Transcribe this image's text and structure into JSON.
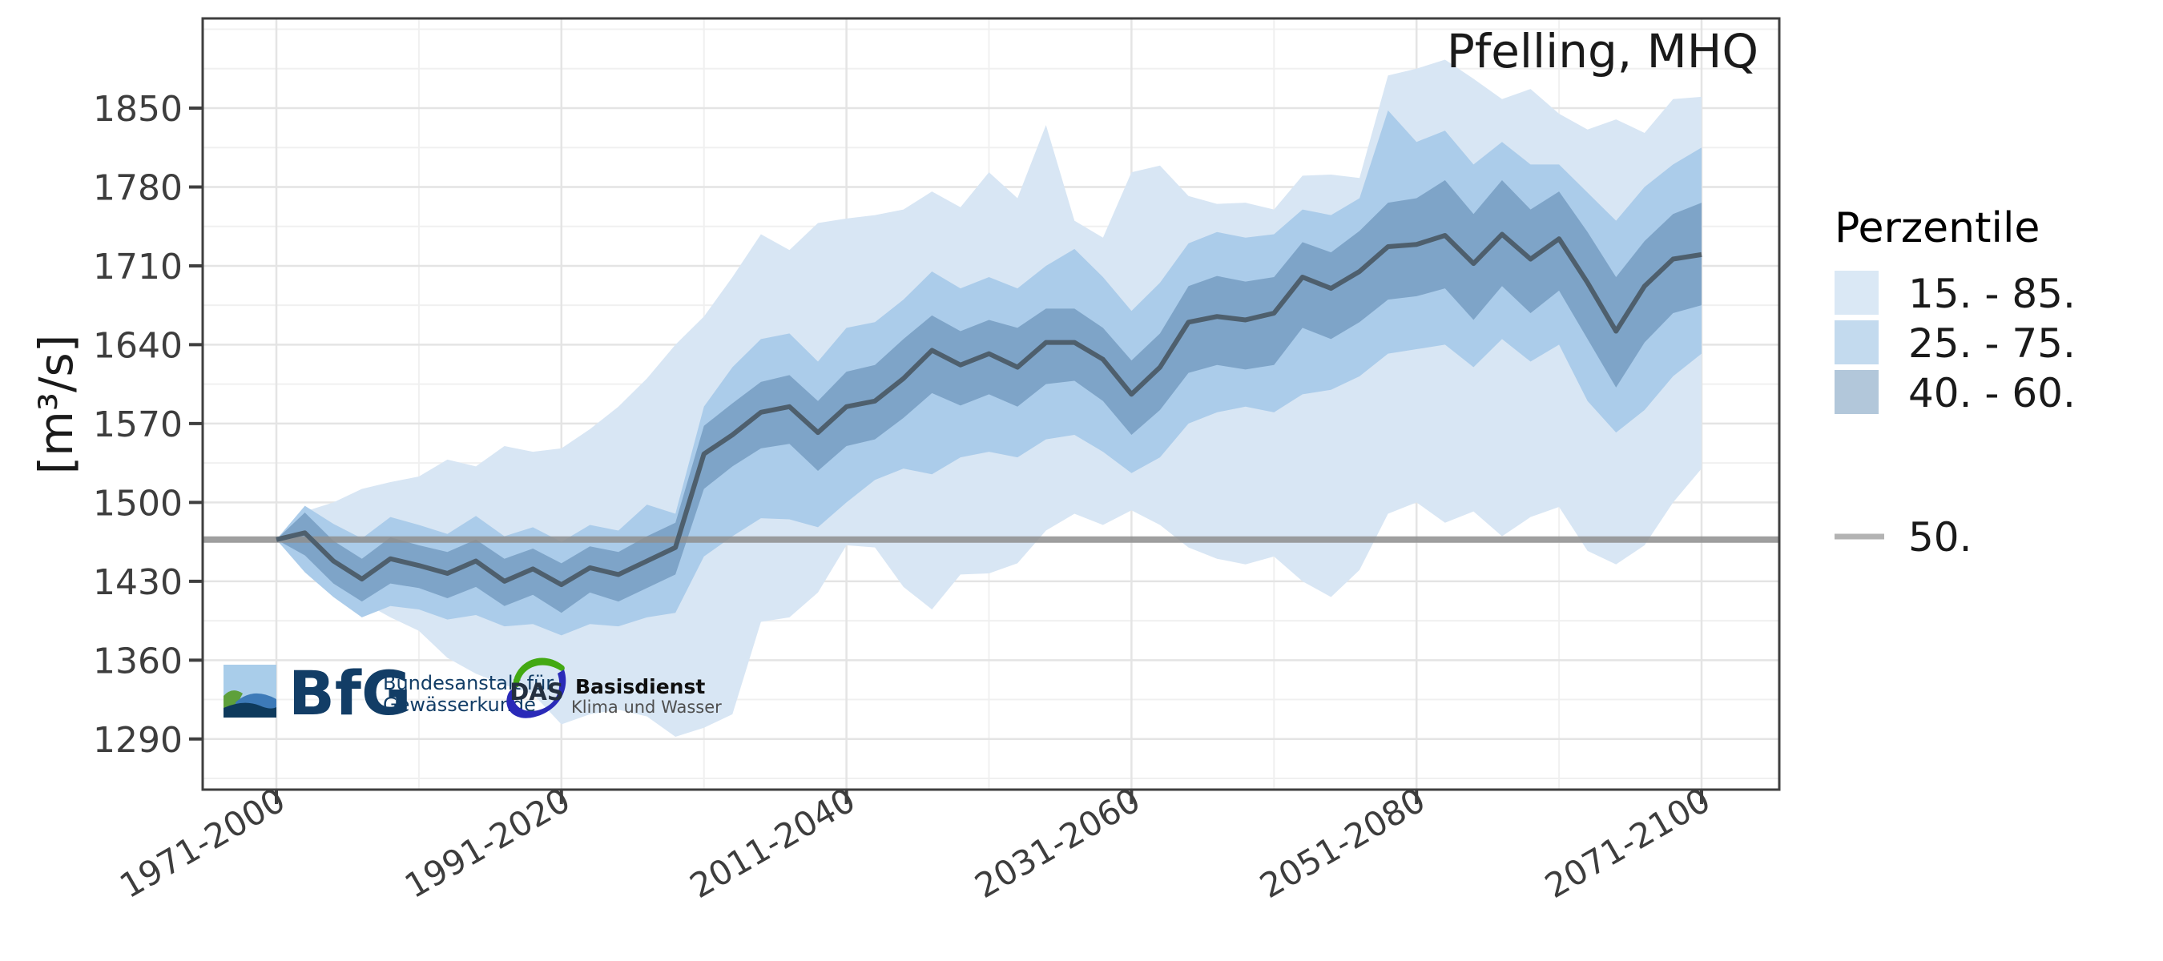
{
  "title": "Pfelling, MHQ",
  "y_axis": {
    "title": "[m³/s]"
  },
  "legend": {
    "title": "Perzentile",
    "bands": [
      {
        "label": "15. - 85.",
        "color": "#dae8f5"
      },
      {
        "label": "25. - 75.",
        "color": "#c3daee"
      },
      {
        "label": "40. - 60.",
        "color": "#b2c7da"
      }
    ],
    "line": {
      "label": "50.",
      "color": "#b3b3b3"
    }
  },
  "reference_line": {
    "value": 1467,
    "color": "#8f8f8f",
    "meaning": "50. Perzentil Referenz"
  },
  "logos": {
    "bfg": {
      "abbr": "BfG",
      "name_line1": "Bundesanstalt für",
      "name_line2": "Gewässerkunde",
      "colors": {
        "navy": "#123d66",
        "sky": "#a9cdea",
        "green": "#5ea03b",
        "blue": "#3d7ab8",
        "dark": "#0e3a5c"
      }
    },
    "das": {
      "abbr": "DAS",
      "name_line1": "Basisdienst",
      "name_line2": "Klima und Wasser",
      "colors": {
        "green": "#43a913",
        "blue": "#2a2ab8",
        "text": "#243040",
        "subtext": "#4f4f4f"
      }
    }
  },
  "colors": {
    "band_15_85": "#d8e6f4",
    "band_25_75": "#abccea",
    "band_40_60": "#7ea4c8",
    "median_line": "#4e5f6d",
    "grid_major": "#e4e4e4",
    "grid_minor": "#f0f0f0",
    "panel_border": "#3f3f3f",
    "tick_text": "#3d3d3d",
    "title_text": "#1a1a1a"
  },
  "chart_data": {
    "type": "area",
    "title": "Pfelling, MHQ",
    "xlabel": "",
    "ylabel": "[m³/s]",
    "legend_position": "right",
    "grid": "on",
    "ylim": [
      1244,
      1930
    ],
    "y_ticks": [
      1290,
      1360,
      1430,
      1500,
      1570,
      1640,
      1710,
      1780,
      1850
    ],
    "y_minor_ticks": [
      1255,
      1325,
      1395,
      1465,
      1535,
      1605,
      1675,
      1745,
      1815,
      1885,
      1920
    ],
    "x_tick_labels": [
      "1971-2000",
      "1991-2020",
      "2011-2040",
      "2031-2060",
      "2051-2080",
      "2071-2100"
    ],
    "x_tick_years": [
      1971,
      1991,
      2011,
      2031,
      2051,
      2071
    ],
    "x_minor_years": [
      1981,
      2001,
      2021,
      2041,
      2061
    ],
    "reference_value": 1467,
    "x": [
      1971,
      1973,
      1975,
      1977,
      1979,
      1981,
      1983,
      1985,
      1987,
      1989,
      1991,
      1993,
      1995,
      1997,
      1999,
      2001,
      2003,
      2005,
      2007,
      2009,
      2011,
      2013,
      2015,
      2017,
      2019,
      2021,
      2023,
      2025,
      2027,
      2029,
      2031,
      2033,
      2035,
      2037,
      2039,
      2041,
      2043,
      2045,
      2047,
      2049,
      2051,
      2053,
      2055,
      2057,
      2059,
      2061,
      2063,
      2065,
      2067,
      2069,
      2071
    ],
    "series": [
      {
        "name": "p15",
        "values": [
          1467,
          1446,
          1430,
          1412,
          1398,
          1386,
          1362,
          1348,
          1338,
          1330,
          1303,
          1312,
          1316,
          1310,
          1292,
          1300,
          1312,
          1394,
          1398,
          1420,
          1462,
          1460,
          1425,
          1405,
          1436,
          1437,
          1446,
          1475,
          1490,
          1480,
          1493,
          1480,
          1460,
          1450,
          1445,
          1452,
          1430,
          1416,
          1440,
          1490,
          1500,
          1482,
          1492,
          1470,
          1487,
          1496,
          1457,
          1445,
          1462,
          1500,
          1530
        ]
      },
      {
        "name": "p25",
        "values": [
          1467,
          1438,
          1416,
          1398,
          1408,
          1405,
          1396,
          1400,
          1390,
          1392,
          1382,
          1392,
          1390,
          1398,
          1402,
          1452,
          1470,
          1486,
          1485,
          1478,
          1500,
          1520,
          1530,
          1525,
          1540,
          1545,
          1540,
          1556,
          1560,
          1545,
          1526,
          1540,
          1570,
          1580,
          1585,
          1580,
          1596,
          1600,
          1612,
          1632,
          1636,
          1640,
          1620,
          1645,
          1625,
          1640,
          1590,
          1562,
          1582,
          1612,
          1632
        ]
      },
      {
        "name": "p40",
        "values": [
          1467,
          1453,
          1428,
          1412,
          1428,
          1424,
          1415,
          1425,
          1408,
          1418,
          1402,
          1420,
          1412,
          1424,
          1436,
          1512,
          1532,
          1548,
          1552,
          1528,
          1550,
          1556,
          1575,
          1597,
          1586,
          1596,
          1585,
          1605,
          1608,
          1590,
          1560,
          1582,
          1615,
          1622,
          1618,
          1622,
          1655,
          1645,
          1660,
          1680,
          1683,
          1690,
          1662,
          1692,
          1668,
          1688,
          1645,
          1602,
          1642,
          1668,
          1675
        ]
      },
      {
        "name": "p50",
        "values": [
          1467,
          1473,
          1448,
          1432,
          1450,
          1444,
          1437,
          1448,
          1430,
          1441,
          1427,
          1442,
          1436,
          1448,
          1460,
          1543,
          1560,
          1580,
          1585,
          1562,
          1585,
          1590,
          1610,
          1635,
          1622,
          1632,
          1620,
          1642,
          1642,
          1627,
          1596,
          1620,
          1660,
          1665,
          1662,
          1668,
          1700,
          1690,
          1705,
          1727,
          1729,
          1737,
          1712,
          1738,
          1716,
          1734,
          1695,
          1652,
          1692,
          1716,
          1720
        ]
      },
      {
        "name": "p60",
        "values": [
          1467,
          1491,
          1466,
          1450,
          1469,
          1462,
          1456,
          1467,
          1450,
          1459,
          1446,
          1461,
          1456,
          1470,
          1482,
          1568,
          1588,
          1607,
          1613,
          1590,
          1616,
          1622,
          1645,
          1666,
          1652,
          1662,
          1655,
          1672,
          1672,
          1655,
          1626,
          1650,
          1692,
          1701,
          1696,
          1700,
          1731,
          1722,
          1741,
          1766,
          1770,
          1786,
          1756,
          1786,
          1760,
          1776,
          1740,
          1700,
          1732,
          1756,
          1766
        ]
      },
      {
        "name": "p75",
        "values": [
          1467,
          1497,
          1481,
          1468,
          1487,
          1480,
          1472,
          1488,
          1470,
          1478,
          1465,
          1480,
          1475,
          1498,
          1490,
          1585,
          1620,
          1645,
          1650,
          1625,
          1655,
          1660,
          1680,
          1705,
          1690,
          1700,
          1690,
          1710,
          1725,
          1700,
          1670,
          1695,
          1730,
          1740,
          1735,
          1738,
          1760,
          1755,
          1770,
          1848,
          1820,
          1830,
          1800,
          1820,
          1800,
          1800,
          1775,
          1750,
          1780,
          1800,
          1815
        ]
      },
      {
        "name": "p85",
        "values": [
          1467,
          1492,
          1500,
          1512,
          1518,
          1523,
          1538,
          1532,
          1550,
          1545,
          1548,
          1565,
          1585,
          1610,
          1640,
          1665,
          1700,
          1738,
          1724,
          1748,
          1752,
          1755,
          1760,
          1776,
          1762,
          1793,
          1770,
          1835,
          1750,
          1735,
          1793,
          1799,
          1772,
          1765,
          1766,
          1760,
          1790,
          1791,
          1788,
          1879,
          1885,
          1893,
          1876,
          1858,
          1867,
          1845,
          1831,
          1840,
          1828,
          1858,
          1860
        ]
      }
    ]
  }
}
